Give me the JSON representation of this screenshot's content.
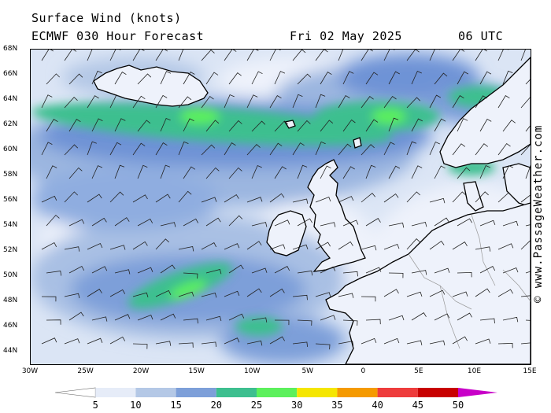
{
  "header": {
    "title": "Surface Wind (knots)",
    "model_line": "ECMWF 030 Hour Forecast",
    "date": "Fri 02 May 2025",
    "time": "06 UTC"
  },
  "credit": "© www.PassageWeather.com",
  "lat_labels": [
    "68N",
    "66N",
    "64N",
    "62N",
    "60N",
    "58N",
    "56N",
    "54N",
    "52N",
    "50N",
    "48N",
    "46N",
    "44N"
  ],
  "lon_labels": [
    "30W",
    "25W",
    "20W",
    "15W",
    "10W",
    "5W",
    "0",
    "5E",
    "10E",
    "15E"
  ],
  "map_extent": {
    "lon": [
      -30,
      15
    ],
    "lat": [
      43,
      68
    ]
  },
  "colorbar": {
    "ticks": [
      "5",
      "10",
      "15",
      "20",
      "25",
      "30",
      "35",
      "40",
      "45",
      "50"
    ],
    "colors": [
      "#e6ecf8",
      "#b4c8e6",
      "#7d9fd9",
      "#3dbf8f",
      "#5cf05c",
      "#f5e600",
      "#f59a00",
      "#ee3c3c",
      "#c80000",
      "#c800c8"
    ],
    "under_color": "#ffffff"
  }
}
